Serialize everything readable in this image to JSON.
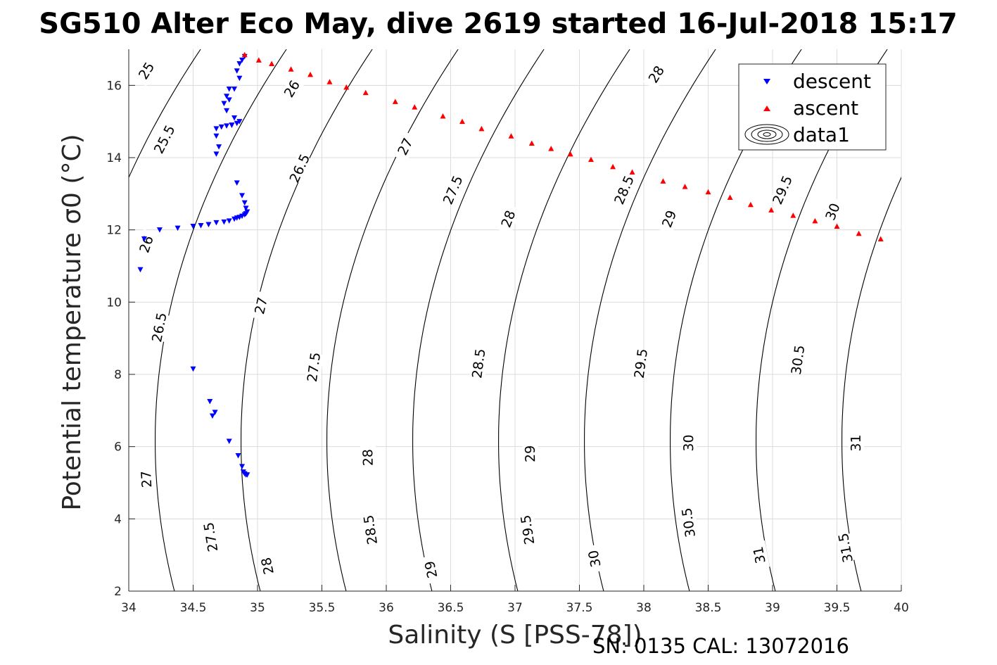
{
  "figure": {
    "title": "SG510 Alter Eco May, dive 2619 started 16-Jul-2018 15:17",
    "footer": "SN: 0135  CAL: 13072016"
  },
  "chart_data": {
    "type": "scatter",
    "title": "SG510 Alter Eco May, dive 2619 started 16-Jul-2018 15:17",
    "xlabel": "Salinity (S [PSS-78])",
    "ylabel": "Potential temperature σ0 (°C)",
    "xlim": [
      34,
      40
    ],
    "ylim": [
      2,
      17
    ],
    "xticks": [
      34,
      34.5,
      35,
      35.5,
      36,
      36.5,
      37,
      37.5,
      38,
      38.5,
      39,
      39.5,
      40
    ],
    "yticks": [
      2,
      4,
      6,
      8,
      10,
      12,
      14,
      16
    ],
    "grid": true,
    "legend": {
      "placement": "top-right",
      "entries": [
        "descent",
        "ascent",
        "data1"
      ]
    },
    "series": [
      {
        "name": "descent",
        "marker": "down-triangle",
        "color": "#0000ff",
        "x": [
          34.9,
          34.88,
          34.86,
          34.84,
          34.86,
          34.82,
          34.78,
          34.76,
          34.78,
          34.74,
          34.76,
          34.82,
          34.8,
          34.86,
          34.84,
          34.8,
          34.76,
          34.72,
          34.68,
          34.68,
          34.7,
          34.68,
          34.84,
          34.88,
          34.9,
          34.91,
          34.92,
          34.91,
          34.9,
          34.88,
          34.86,
          34.84,
          34.82,
          34.78,
          34.74,
          34.68,
          34.62,
          34.56,
          34.5,
          34.38,
          34.24,
          34.12,
          34.09,
          34.5,
          34.63,
          34.67,
          34.65,
          34.78,
          34.85,
          34.88,
          34.89,
          34.9,
          34.91,
          34.92
        ],
        "y": [
          16.8,
          16.7,
          16.6,
          16.4,
          16.2,
          15.9,
          15.9,
          15.7,
          15.6,
          15.5,
          15.3,
          15.1,
          14.9,
          15.0,
          14.95,
          14.9,
          14.88,
          14.85,
          14.8,
          14.6,
          14.3,
          14.1,
          13.3,
          12.95,
          12.75,
          12.6,
          12.5,
          12.45,
          12.42,
          12.38,
          12.35,
          12.33,
          12.3,
          12.25,
          12.22,
          12.2,
          12.15,
          12.12,
          12.1,
          12.05,
          12.0,
          11.75,
          10.9,
          8.15,
          7.25,
          6.95,
          6.85,
          6.15,
          5.75,
          5.45,
          5.3,
          5.25,
          5.22,
          5.22
        ]
      },
      {
        "name": "ascent",
        "marker": "up-triangle",
        "color": "#ff0000",
        "x": [
          34.9,
          35.01,
          35.11,
          35.26,
          35.41,
          35.56,
          35.69,
          35.84,
          36.07,
          36.22,
          36.44,
          36.59,
          36.74,
          36.97,
          37.13,
          37.28,
          37.43,
          37.59,
          37.76,
          37.91,
          38.15,
          38.32,
          38.5,
          38.67,
          38.83,
          38.99,
          39.16,
          39.33,
          39.5,
          39.67,
          39.84
        ],
        "y": [
          16.85,
          16.7,
          16.6,
          16.45,
          16.3,
          16.1,
          15.95,
          15.8,
          15.55,
          15.4,
          15.15,
          15.0,
          14.8,
          14.6,
          14.4,
          14.25,
          14.1,
          13.95,
          13.75,
          13.6,
          13.35,
          13.2,
          13.05,
          12.9,
          12.7,
          12.55,
          12.4,
          12.25,
          12.1,
          11.9,
          11.75
        ]
      }
    ],
    "contours": {
      "label": "data1",
      "style": "sigma0 isopycnals",
      "levels": [
        25,
        25.5,
        26,
        26.5,
        27,
        27.5,
        28,
        28.5,
        29,
        29.5,
        30,
        30.5,
        31,
        31.5
      ],
      "labels": [
        {
          "text": "25",
          "s": 34.14,
          "t": 16.4
        },
        {
          "text": "25.5",
          "s": 34.28,
          "t": 14.5
        },
        {
          "text": "26",
          "s": 34.14,
          "t": 11.6
        },
        {
          "text": "26",
          "s": 35.27,
          "t": 15.9
        },
        {
          "text": "26.5",
          "s": 34.24,
          "t": 9.3
        },
        {
          "text": "26.5",
          "s": 35.33,
          "t": 13.7
        },
        {
          "text": "27",
          "s": 34.14,
          "t": 5.1
        },
        {
          "text": "27",
          "s": 35.03,
          "t": 9.9
        },
        {
          "text": "27",
          "s": 36.15,
          "t": 14.3
        },
        {
          "text": "27.5",
          "s": 34.64,
          "t": 3.5
        },
        {
          "text": "27.5",
          "s": 35.44,
          "t": 8.2
        },
        {
          "text": "27.5",
          "s": 36.52,
          "t": 13.1
        },
        {
          "text": "28",
          "s": 35.08,
          "t": 2.7
        },
        {
          "text": "28",
          "s": 35.86,
          "t": 5.7
        },
        {
          "text": "28",
          "s": 36.95,
          "t": 12.3
        },
        {
          "text": "28",
          "s": 38.1,
          "t": 16.3
        },
        {
          "text": "28.5",
          "s": 35.88,
          "t": 3.7
        },
        {
          "text": "28.5",
          "s": 36.72,
          "t": 8.3
        },
        {
          "text": "28.5",
          "s": 37.85,
          "t": 13.1
        },
        {
          "text": "29",
          "s": 36.35,
          "t": 2.6
        },
        {
          "text": "29",
          "s": 37.12,
          "t": 5.8
        },
        {
          "text": "29",
          "s": 38.2,
          "t": 12.3
        },
        {
          "text": "29.5",
          "s": 37.1,
          "t": 3.7
        },
        {
          "text": "29.5",
          "s": 37.98,
          "t": 8.3
        },
        {
          "text": "29.5",
          "s": 39.08,
          "t": 13.1
        },
        {
          "text": "30",
          "s": 37.62,
          "t": 2.9
        },
        {
          "text": "30",
          "s": 38.35,
          "t": 6.1
        },
        {
          "text": "30",
          "s": 39.47,
          "t": 12.5
        },
        {
          "text": "30.5",
          "s": 38.35,
          "t": 3.9
        },
        {
          "text": "30.5",
          "s": 39.2,
          "t": 8.4
        },
        {
          "text": "31",
          "s": 38.9,
          "t": 3.0
        },
        {
          "text": "31",
          "s": 39.65,
          "t": 6.1
        },
        {
          "text": "31.5",
          "s": 39.57,
          "t": 3.2
        }
      ]
    }
  }
}
